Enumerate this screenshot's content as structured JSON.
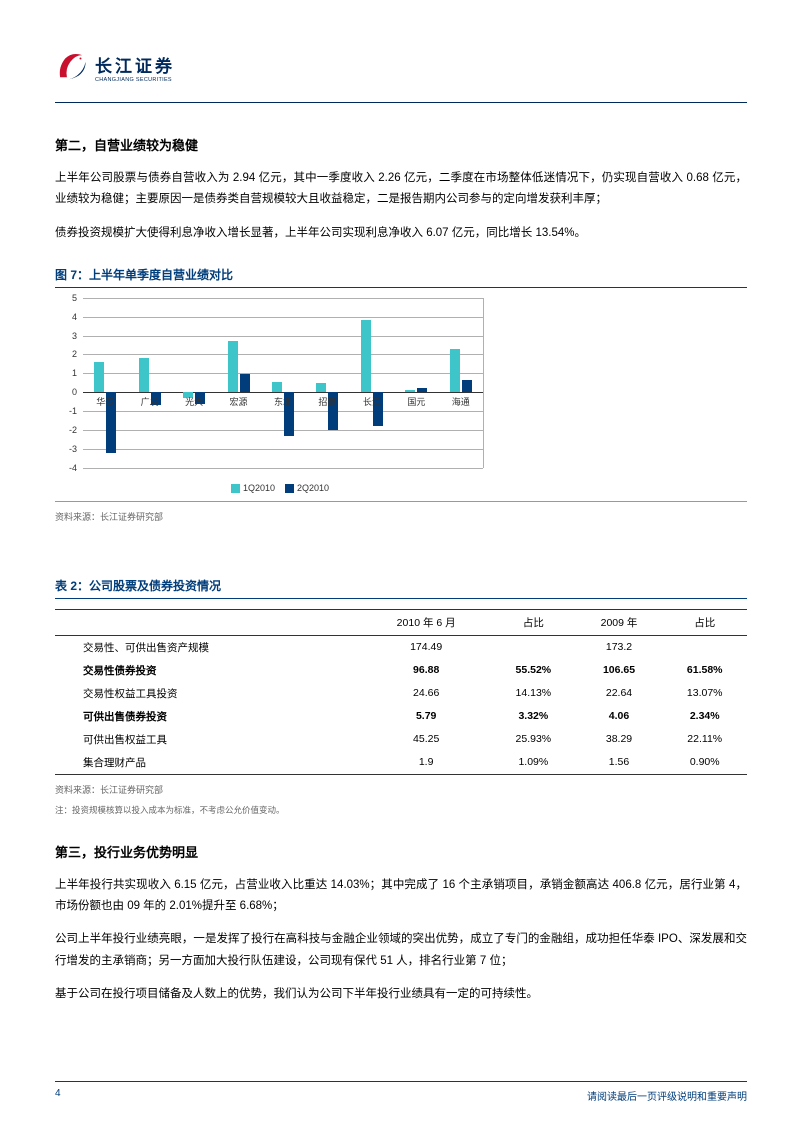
{
  "logo": {
    "cn": "长江证券",
    "en": "CHANGJIANG SECURITIES"
  },
  "section2": {
    "title": "第二，自营业绩较为稳健",
    "p1": "上半年公司股票与债券自营收入为 2.94 亿元，其中一季度收入 2.26 亿元，二季度在市场整体低迷情况下，仍实现自营收入 0.68 亿元，业绩较为稳健；主要原因一是债券类自营规模较大且收益稳定，二是报告期内公司参与的定向增发获利丰厚；",
    "p2": "债券投资规模扩大使得利息净收入增长显著，上半年公司实现利息净收入 6.07 亿元，同比增长 13.54%。"
  },
  "chart7": {
    "title": "图 7：上半年单季度自营业绩对比",
    "type": "bar",
    "ylim": [
      -4,
      5
    ],
    "ytick_step": 1,
    "grid_color": "#b0b0b0",
    "categories": [
      "华泰",
      "广发",
      "光大",
      "宏源",
      "东北",
      "招商",
      "长江",
      "国元",
      "海通"
    ],
    "series": [
      {
        "name": "1Q2010",
        "color": "#3ec5c9",
        "values": [
          1.6,
          1.8,
          -0.3,
          2.7,
          0.55,
          0.5,
          3.8,
          0.1,
          2.3
        ]
      },
      {
        "name": "2Q2010",
        "color": "#003d7a",
        "values": [
          -3.2,
          -0.7,
          -0.6,
          0.95,
          -2.3,
          -2.0,
          -1.8,
          0.2,
          0.65
        ]
      }
    ],
    "source": "资料来源：长江证券研究部"
  },
  "table2": {
    "title": "表 2：公司股票及债券投资情况",
    "columns": [
      "",
      "2010 年 6 月",
      "占比",
      "2009 年",
      "占比"
    ],
    "rows": [
      {
        "cells": [
          "交易性、可供出售资产规模",
          "174.49",
          "",
          "173.2",
          ""
        ],
        "bold": false
      },
      {
        "cells": [
          "交易性债券投资",
          "96.88",
          "55.52%",
          "106.65",
          "61.58%"
        ],
        "bold": true
      },
      {
        "cells": [
          "交易性权益工具投资",
          "24.66",
          "14.13%",
          "22.64",
          "13.07%"
        ],
        "bold": false
      },
      {
        "cells": [
          "可供出售债券投资",
          "5.79",
          "3.32%",
          "4.06",
          "2.34%"
        ],
        "bold": true
      },
      {
        "cells": [
          "可供出售权益工具",
          "45.25",
          "25.93%",
          "38.29",
          "22.11%"
        ],
        "bold": false
      },
      {
        "cells": [
          "集合理财产品",
          "1.9",
          "1.09%",
          "1.56",
          "0.90%"
        ],
        "bold": false
      }
    ],
    "source": "资料来源：长江证券研究部",
    "note": "注：投资规模核算以投入成本为标准，不考虑公允价值变动。"
  },
  "section3": {
    "title": "第三，投行业务优势明显",
    "p1": "上半年投行共实现收入 6.15 亿元，占营业收入比重达 14.03%；其中完成了 16 个主承销项目，承销金额高达 406.8 亿元，居行业第 4，市场份额也由 09 年的 2.01%提升至 6.68%；",
    "p2": "公司上半年投行业绩亮眼，一是发挥了投行在高科技与金融企业领域的突出优势，成立了专门的金融组，成功担任华泰 IPO、深发展和交行增发的主承销商；另一方面加大投行队伍建设，公司现有保代 51 人，排名行业第 7 位；",
    "p3": "基于公司在投行项目储备及人数上的优势，我们认为公司下半年投行业绩具有一定的可持续性。"
  },
  "footer": {
    "page": "4",
    "disclaimer": "请阅读最后一页评级说明和重要声明"
  }
}
